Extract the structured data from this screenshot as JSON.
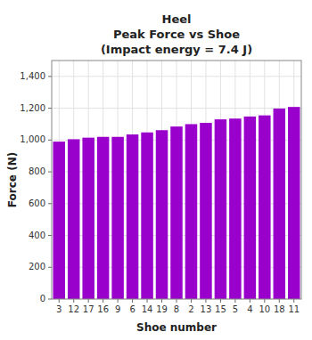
{
  "chart_data": {
    "type": "bar",
    "title": "Heel\nPeak Force vs Shoe\n(Impact energy = 7.4 J)",
    "x_label": "Shoe number",
    "y_label": "Force (N)",
    "categories": [
      "3",
      "12",
      "17",
      "16",
      "9",
      "6",
      "14",
      "19",
      "8",
      "2",
      "13",
      "15",
      "5",
      "4",
      "10",
      "18",
      "11"
    ],
    "values": [
      990,
      1005,
      1015,
      1020,
      1020,
      1035,
      1048,
      1062,
      1085,
      1100,
      1108,
      1130,
      1135,
      1148,
      1155,
      1198,
      1208
    ],
    "color": "#9900CC",
    "ylim": [
      0,
      1500
    ],
    "yticks": [
      0,
      200,
      400,
      600,
      800,
      {
        "value": 1000,
        "label": "1,000"
      },
      {
        "value": 1200,
        "label": "1,200"
      },
      {
        "value": 1400,
        "label": "1,400"
      }
    ],
    "grid": true
  }
}
